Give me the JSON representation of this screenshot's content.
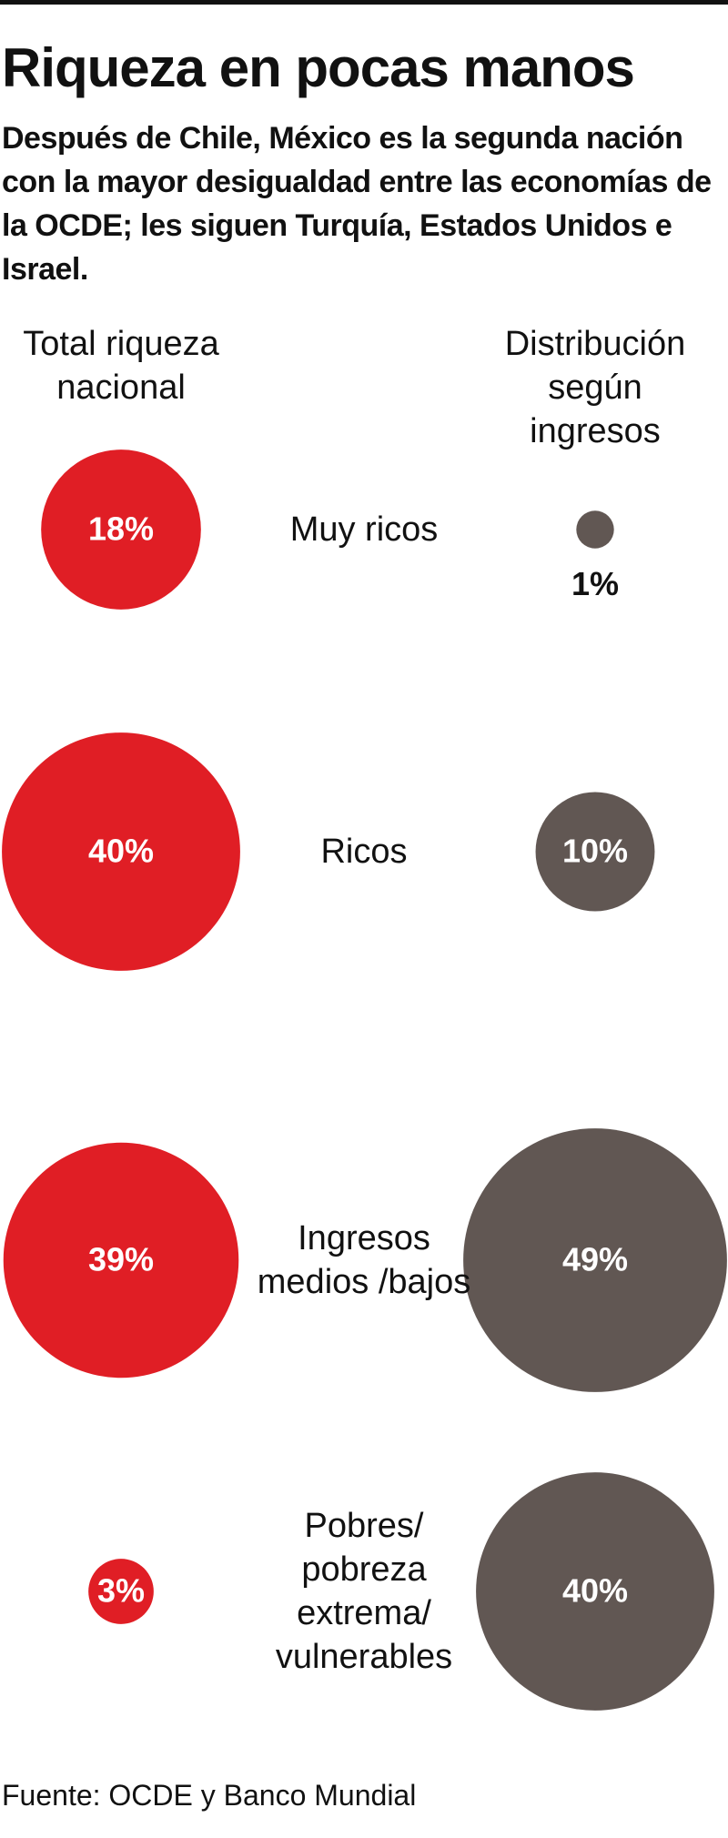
{
  "chart_data": {
    "type": "bubble",
    "title": "Riqueza en pocas manos",
    "subtitle": "Después de Chile, México es la segunda nación con la mayor desigualdad entre las economías de la OCDE; les siguen Turquía, Estados Unidos e Israel.",
    "categories": [
      "Muy ricos",
      "Ricos",
      "Ingresos medios /bajos",
      "Pobres/ pobreza extrema/ vulnerables"
    ],
    "series": [
      {
        "name": "Total riqueza nacional",
        "color": "#e01e25",
        "values": [
          18,
          40,
          39,
          3
        ],
        "value_labels": [
          "18%",
          "40%",
          "39%",
          "3%"
        ]
      },
      {
        "name": "Distribución según ingresos",
        "color": "#615753",
        "values": [
          1,
          10,
          49,
          40
        ],
        "value_labels": [
          "1%",
          "10%",
          "49%",
          "40%"
        ]
      }
    ],
    "source": "Fuente: OCDE y Banco Mundial"
  }
}
